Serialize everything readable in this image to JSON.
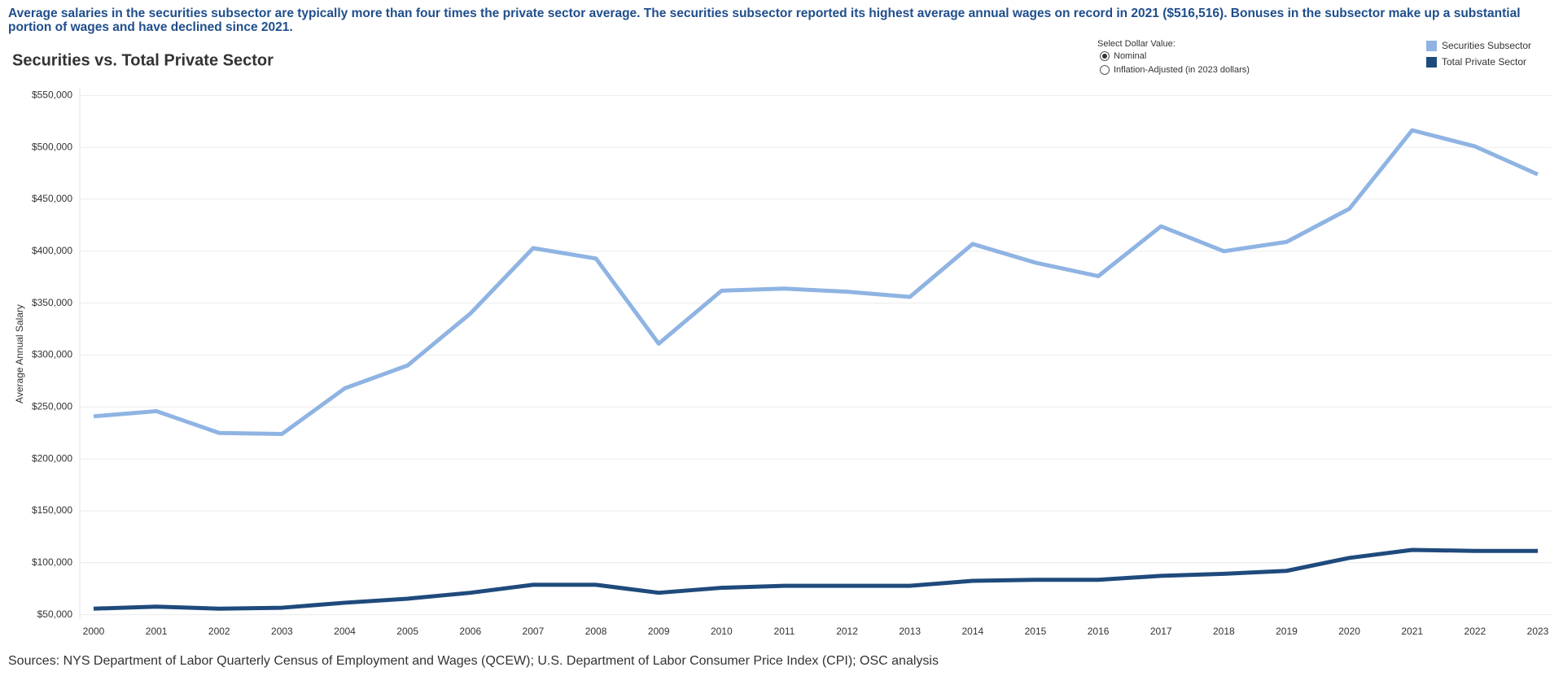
{
  "description": "Average salaries in the securities subsector are typically more than four times the private sector average. The securities subsector reported its highest average annual wages on record in 2021 ($516,516). Bonuses in the subsector make up a substantial portion of wages and have declined since 2021.",
  "controls": {
    "label": "Select Dollar Value:",
    "options": [
      "Nominal",
      "Inflation-Adjusted (in 2023 dollars)"
    ],
    "selected": 0
  },
  "sources": "Sources: NYS Department of Labor Quarterly Census of Employment and Wages (QCEW); U.S. Department of Labor Consumer Price Index (CPI); OSC analysis",
  "chart_data": {
    "type": "line",
    "title": "Securities vs. Total Private Sector",
    "y_label": "Average Annual Salary",
    "categories": [
      "2000",
      "2001",
      "2002",
      "2003",
      "2004",
      "2005",
      "2006",
      "2007",
      "2008",
      "2009",
      "2010",
      "2011",
      "2012",
      "2013",
      "2014",
      "2015",
      "2016",
      "2017",
      "2018",
      "2019",
      "2020",
      "2021",
      "2022",
      "2023"
    ],
    "series": [
      {
        "name": "Securities Subsector",
        "color": "#8fb4e3",
        "values": [
          241000,
          246000,
          225000,
          224000,
          268000,
          290000,
          340000,
          403000,
          393000,
          311000,
          362000,
          364000,
          361000,
          356000,
          407000,
          389000,
          376000,
          424000,
          400000,
          409000,
          441000,
          516516,
          501000,
          474000
        ]
      },
      {
        "name": "Total Private Sector",
        "color": "#1f4a7c",
        "values": [
          55800,
          57700,
          55800,
          56700,
          61500,
          65400,
          71100,
          78800,
          78800,
          71100,
          75900,
          77800,
          77800,
          77800,
          82600,
          83600,
          83600,
          87400,
          89400,
          92200,
          104700,
          112400,
          111400,
          111400
        ]
      }
    ],
    "ylim": [
      45000,
      555000
    ],
    "yticks": [
      {
        "value": 50000,
        "label": "$50,000"
      },
      {
        "value": 100000,
        "label": "$100,000"
      },
      {
        "value": 150000,
        "label": "$150,000"
      },
      {
        "value": 200000,
        "label": "$200,000"
      },
      {
        "value": 250000,
        "label": "$250,000"
      },
      {
        "value": 300000,
        "label": "$300,000"
      },
      {
        "value": 350000,
        "label": "$350,000"
      },
      {
        "value": 400000,
        "label": "$400,000"
      },
      {
        "value": 450000,
        "label": "$450,000"
      },
      {
        "value": 500000,
        "label": "$500,000"
      },
      {
        "value": 550000,
        "label": "$550,000"
      }
    ],
    "grid": true
  }
}
